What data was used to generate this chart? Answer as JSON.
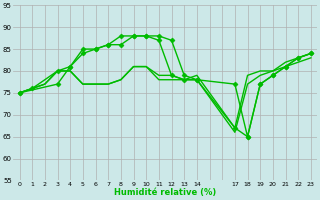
{
  "background_color": "#cce8e8",
  "grid_color": "#b0b0b0",
  "line_color": "#00bb00",
  "xlabel": "Humidité relative (%)",
  "ylim": [
    55,
    95
  ],
  "yticks": [
    55,
    60,
    65,
    70,
    75,
    80,
    85,
    90,
    95
  ],
  "x_labels": [
    "0",
    "1",
    "2",
    "3",
    "4",
    "5",
    "6",
    "7",
    "8",
    "9",
    "10",
    "11",
    "12",
    "13",
    "14",
    "",
    "",
    "17",
    "18",
    "19",
    "20",
    "21",
    "22",
    "23"
  ],
  "series": [
    {
      "xi": [
        0,
        1,
        3,
        4,
        5,
        6,
        7,
        8,
        9,
        10,
        11,
        12,
        13,
        14,
        17,
        18,
        19,
        20,
        21,
        22,
        23
      ],
      "y": [
        75,
        76,
        80,
        81,
        85,
        85,
        86,
        86,
        88,
        88,
        87,
        79,
        78,
        78,
        77,
        65,
        77,
        79,
        81,
        83,
        84
      ],
      "marker": "D",
      "markersize": 2.5,
      "linewidth": 1.0
    },
    {
      "xi": [
        0,
        1,
        2,
        3,
        4,
        5,
        6,
        7,
        8,
        9,
        10,
        11,
        12,
        13,
        14,
        17,
        18,
        19,
        20,
        21,
        22,
        23
      ],
      "y": [
        75,
        76,
        77,
        80,
        80,
        77,
        77,
        77,
        78,
        81,
        81,
        78,
        78,
        78,
        78,
        66,
        77,
        79,
        80,
        82,
        83,
        84
      ],
      "marker": null,
      "markersize": 0,
      "linewidth": 1.0
    },
    {
      "xi": [
        0,
        1,
        2,
        3,
        4,
        5,
        6,
        7,
        8,
        9,
        10,
        11,
        12,
        13,
        14,
        17,
        18,
        19,
        20,
        21,
        22,
        23
      ],
      "y": [
        75,
        76,
        77,
        80,
        80,
        77,
        77,
        77,
        78,
        81,
        81,
        79,
        79,
        78,
        79,
        67,
        79,
        80,
        80,
        81,
        82,
        83
      ],
      "marker": null,
      "markersize": 0,
      "linewidth": 1.0
    },
    {
      "xi": [
        0,
        3,
        4,
        5,
        6,
        7,
        8,
        9,
        10,
        11,
        12,
        13,
        14,
        17,
        18,
        19,
        20,
        21,
        22,
        23
      ],
      "y": [
        75,
        77,
        81,
        84,
        85,
        86,
        88,
        88,
        88,
        88,
        87,
        79,
        78,
        67,
        65,
        77,
        79,
        81,
        83,
        84
      ],
      "marker": "D",
      "markersize": 2.5,
      "linewidth": 1.0
    }
  ]
}
